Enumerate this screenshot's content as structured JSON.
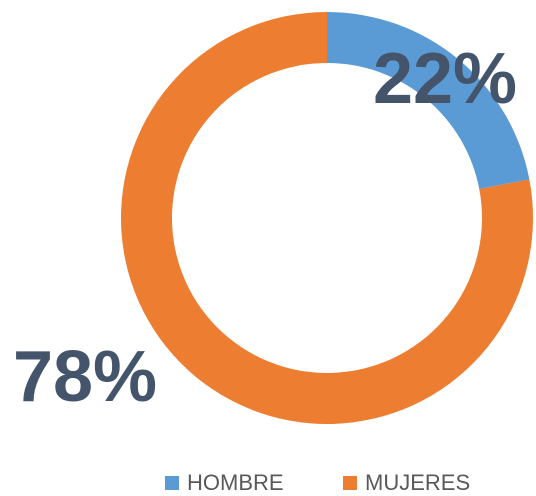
{
  "chart_data": {
    "type": "donut",
    "categories": [
      "HOMBRE",
      "MUJERES"
    ],
    "values": [
      22,
      78
    ],
    "value_labels": [
      "22%",
      "78%"
    ],
    "colors": [
      "#5b9bd5",
      "#ed7d31"
    ],
    "legend": "bottom"
  }
}
